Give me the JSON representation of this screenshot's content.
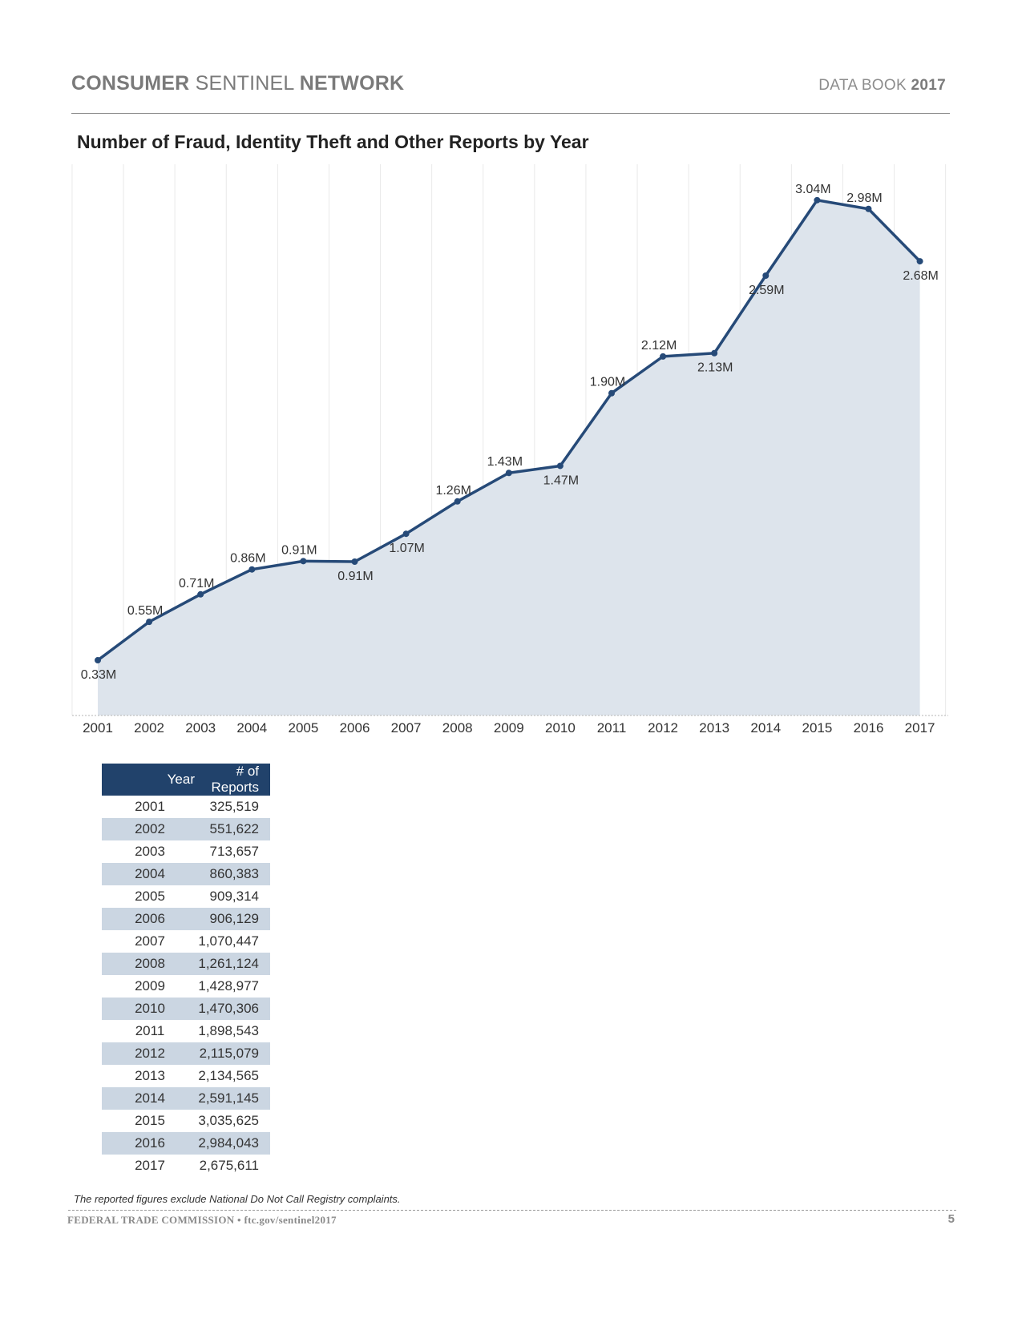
{
  "header": {
    "title_bold1": "CONSUMER",
    "title_light": "SENTINEL",
    "title_bold2": "NETWORK",
    "databook_light": "DATA BOOK",
    "databook_year": "2017"
  },
  "chart_data": {
    "type": "area",
    "title": "Number of Fraud, Identity Theft and Other Reports by Year",
    "categories": [
      "2001",
      "2002",
      "2003",
      "2004",
      "2005",
      "2006",
      "2007",
      "2008",
      "2009",
      "2010",
      "2011",
      "2012",
      "2013",
      "2014",
      "2015",
      "2016",
      "2017"
    ],
    "values": [
      325519,
      551622,
      713657,
      860383,
      909314,
      906129,
      1070447,
      1261124,
      1428977,
      1470306,
      1898543,
      2115079,
      2134565,
      2591145,
      3035625,
      2984043,
      2675611
    ],
    "data_labels": [
      "0.33M",
      "0.55M",
      "0.71M",
      "0.86M",
      "0.91M",
      "0.91M",
      "1.07M",
      "1.26M",
      "1.43M",
      "1.47M",
      "1.90M",
      "2.12M",
      "2.13M",
      "2.59M",
      "3.04M",
      "2.98M",
      "2.68M"
    ],
    "label_positions": [
      "below",
      "above",
      "above",
      "above",
      "above",
      "below",
      "below",
      "above",
      "above",
      "below",
      "above",
      "above",
      "below",
      "below",
      "above",
      "above",
      "below"
    ],
    "ylim": [
      0,
      3200000
    ],
    "grid": "vertical",
    "colors": {
      "line": "#264a78",
      "area": "#dde4ec",
      "grid": "#e9e9e9"
    }
  },
  "table": {
    "headers": [
      "Year",
      "# of Reports"
    ],
    "rows": [
      [
        "2001",
        "325,519"
      ],
      [
        "2002",
        "551,622"
      ],
      [
        "2003",
        "713,657"
      ],
      [
        "2004",
        "860,383"
      ],
      [
        "2005",
        "909,314"
      ],
      [
        "2006",
        "906,129"
      ],
      [
        "2007",
        "1,070,447"
      ],
      [
        "2008",
        "1,261,124"
      ],
      [
        "2009",
        "1,428,977"
      ],
      [
        "2010",
        "1,470,306"
      ],
      [
        "2011",
        "1,898,543"
      ],
      [
        "2012",
        "2,115,079"
      ],
      [
        "2013",
        "2,134,565"
      ],
      [
        "2014",
        "2,591,145"
      ],
      [
        "2015",
        "3,035,625"
      ],
      [
        "2016",
        "2,984,043"
      ],
      [
        "2017",
        "2,675,611"
      ]
    ],
    "colors": {
      "header": "#21426b",
      "alt_row": "#cbd6e2"
    }
  },
  "footnote": "The reported figures exclude National Do Not Call Registry complaints.",
  "footer": {
    "left": "FEDERAL TRADE COMMISSION • ftc.gov/sentinel2017",
    "page": "5"
  }
}
